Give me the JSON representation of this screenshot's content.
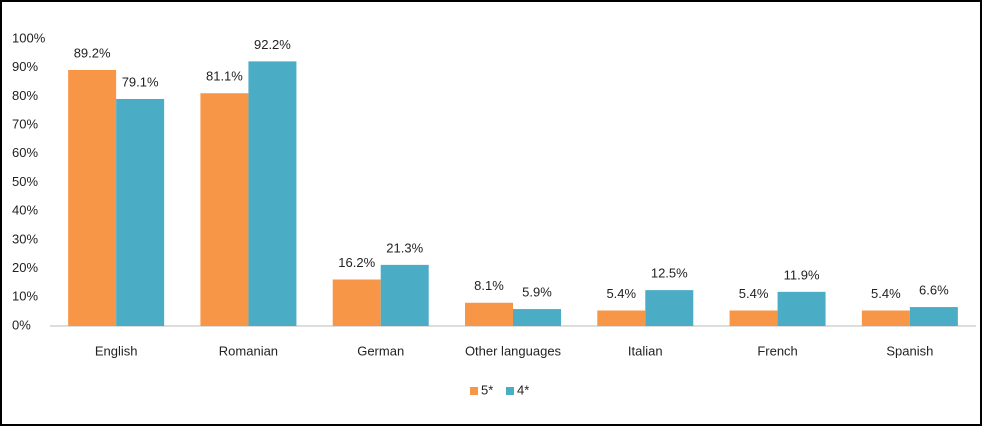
{
  "chart_data": {
    "type": "bar",
    "categories": [
      "English",
      "Romanian",
      "German",
      "Other languages",
      "Italian",
      "French",
      "Spanish"
    ],
    "series": [
      {
        "name": "5*",
        "color": "#f79646",
        "values": [
          89.2,
          81.1,
          16.2,
          8.1,
          5.4,
          5.4,
          5.4
        ],
        "value_labels": [
          "89.2%",
          "81.1%",
          "16.2%",
          "8.1%",
          "5.4%",
          "5.4%",
          "5.4%"
        ]
      },
      {
        "name": "4*",
        "color": "#4bacc6",
        "values": [
          79.1,
          92.2,
          21.3,
          5.9,
          12.5,
          11.9,
          6.6
        ],
        "value_labels": [
          "79.1%",
          "92.2%",
          "21.3%",
          "5.9%",
          "12.5%",
          "11.9%",
          "6.6%"
        ]
      }
    ],
    "ylim": [
      0,
      100
    ],
    "yticks": [
      {
        "value": 0,
        "label": "0%"
      },
      {
        "value": 10,
        "label": "10%"
      },
      {
        "value": 20,
        "label": "20%"
      },
      {
        "value": 30,
        "label": "30%"
      },
      {
        "value": 40,
        "label": "40%"
      },
      {
        "value": 50,
        "label": "50%"
      },
      {
        "value": 60,
        "label": "60%"
      },
      {
        "value": 70,
        "label": "70%"
      },
      {
        "value": 80,
        "label": "80%"
      },
      {
        "value": 90,
        "label": "90%"
      },
      {
        "value": 100,
        "label": "100%"
      }
    ],
    "grid": false,
    "legend": "bottom"
  }
}
